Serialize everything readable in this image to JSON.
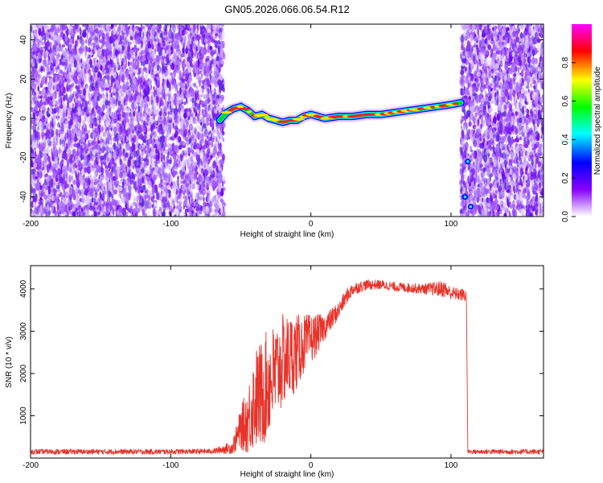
{
  "title": "GN05.2026.066.06.54.R12",
  "chart_data": [
    {
      "type": "heatmap",
      "xlabel": "Height of straight line (km)",
      "ylabel": "Frequency (Hz)",
      "xlim": [
        -200,
        166
      ],
      "ylim": [
        -50,
        48
      ],
      "xticks": [
        -200,
        -100,
        0,
        100
      ],
      "yticks": [
        -40,
        -20,
        0,
        20,
        40
      ],
      "colorbar": {
        "label": "Normalized spectral amplitude",
        "range": [
          0,
          1
        ],
        "ticks": [
          "0.0",
          "0.2",
          "0.4",
          "0.6",
          "0.8"
        ],
        "colors": [
          "#ffffff",
          "#8800ff",
          "#0000ff",
          "#00ffff",
          "#00ff00",
          "#ffff00",
          "#ff0000",
          "#ff00ff"
        ]
      },
      "noise_regions": [
        [
          -200,
          -62
        ],
        [
          107,
          166
        ]
      ],
      "ridge": {
        "height_km": [
          -65,
          -60,
          -55,
          -50,
          -45,
          -40,
          -35,
          -30,
          -25,
          -20,
          -15,
          -10,
          -5,
          0,
          10,
          20,
          30,
          40,
          50,
          60,
          70,
          80,
          90,
          100,
          107
        ],
        "frequency_hz": [
          -1,
          3,
          5,
          6,
          4,
          1,
          2,
          0,
          -1,
          -2,
          -1,
          -1,
          1,
          2,
          0,
          1,
          1,
          2,
          2,
          3,
          4,
          5,
          6,
          7,
          8
        ]
      },
      "blobs": [
        {
          "height_km": 112,
          "frequency_hz": -22
        },
        {
          "height_km": 110,
          "frequency_hz": -40
        },
        {
          "height_km": 114,
          "frequency_hz": -45
        }
      ]
    },
    {
      "type": "line",
      "xlabel": "Height of straight line (km)",
      "ylabel": "SNR (10 * v/v)",
      "xlim": [
        -200,
        166
      ],
      "ylim": [
        0,
        4550
      ],
      "xticks": [
        -200,
        -100,
        0,
        100
      ],
      "yticks": [
        1000,
        2000,
        3000,
        4000
      ],
      "color": "#e8332a",
      "series": [
        {
          "name": "SNR",
          "x": [
            -200,
            -150,
            -100,
            -70,
            -56,
            -50,
            -45,
            -40,
            -35,
            -30,
            -25,
            -20,
            -15,
            -10,
            -5,
            0,
            10,
            20,
            25,
            30,
            40,
            50,
            60,
            80,
            95,
            100,
            110,
            111,
            112,
            130,
            166
          ],
          "y": [
            150,
            150,
            150,
            160,
            250,
            700,
            900,
            1400,
            1500,
            1800,
            2000,
            2300,
            2400,
            2500,
            2700,
            2800,
            3100,
            3500,
            3800,
            4000,
            4100,
            4100,
            4050,
            4000,
            4000,
            3900,
            3850,
            3800,
            150,
            150,
            150
          ],
          "noise": [
            60,
            60,
            60,
            60,
            150,
            500,
            800,
            1200,
            1300,
            1300,
            1200,
            1100,
            1000,
            900,
            700,
            600,
            300,
            200,
            180,
            150,
            120,
            110,
            110,
            120,
            200,
            150,
            150,
            150,
            50,
            60,
            60
          ]
        }
      ]
    }
  ]
}
